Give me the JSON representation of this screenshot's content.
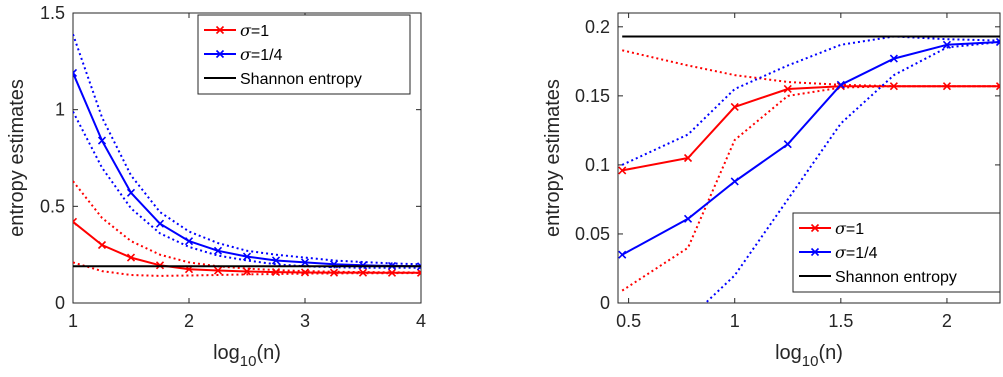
{
  "chart_data": [
    {
      "type": "line",
      "title": "",
      "xlabel": "log",
      "xlabel_sub": "10",
      "xlabel_suffix": "(n)",
      "ylabel": "entropy estimates",
      "xlim": [
        1,
        4
      ],
      "ylim": [
        0,
        1.5
      ],
      "xticks": [
        1,
        2,
        3,
        4
      ],
      "yticks": [
        0,
        0.5,
        1,
        1.5
      ],
      "xtick_labels": [
        "1",
        "2",
        "3",
        "4"
      ],
      "ytick_labels": [
        "0",
        "0.5",
        "1",
        "1.5"
      ],
      "grid": false,
      "legend_position": "top-right",
      "legend_labels": [
        {
          "symbol": "σ",
          "rest": "=1"
        },
        {
          "symbol": "σ",
          "rest": "=1/4"
        },
        {
          "symbol": "",
          "rest": "Shannon entropy"
        }
      ],
      "x": [
        1,
        1.25,
        1.5,
        1.75,
        2,
        2.25,
        2.5,
        2.75,
        3,
        3.25,
        3.5,
        3.75,
        4
      ],
      "series": [
        {
          "name": "σ=1",
          "color": "#ff0000",
          "style": "solid",
          "marker": "x",
          "values": [
            0.42,
            0.3,
            0.235,
            0.195,
            0.175,
            0.168,
            0.163,
            0.16,
            0.158,
            0.157,
            0.157,
            0.156,
            0.156
          ]
        },
        {
          "name": "σ=1 upper",
          "color": "#ff0000",
          "style": "dotted",
          "values": [
            0.63,
            0.44,
            0.32,
            0.25,
            0.21,
            0.19,
            0.178,
            0.17,
            0.165,
            0.162,
            0.16,
            0.159,
            0.158
          ]
        },
        {
          "name": "σ=1 lower",
          "color": "#ff0000",
          "style": "dotted",
          "values": [
            0.21,
            0.165,
            0.145,
            0.14,
            0.142,
            0.145,
            0.148,
            0.15,
            0.152,
            0.153,
            0.154,
            0.154,
            0.155
          ]
        },
        {
          "name": "σ=1/4",
          "color": "#0000ff",
          "style": "solid",
          "marker": "x",
          "values": [
            1.19,
            0.84,
            0.57,
            0.41,
            0.32,
            0.27,
            0.24,
            0.22,
            0.21,
            0.2,
            0.195,
            0.192,
            0.19
          ]
        },
        {
          "name": "σ=1/4 upper",
          "color": "#0000ff",
          "style": "dotted",
          "values": [
            1.39,
            0.96,
            0.66,
            0.47,
            0.37,
            0.31,
            0.27,
            0.25,
            0.235,
            0.22,
            0.212,
            0.205,
            0.2
          ]
        },
        {
          "name": "σ=1/4 lower",
          "color": "#0000ff",
          "style": "dotted",
          "values": [
            0.99,
            0.7,
            0.49,
            0.36,
            0.29,
            0.245,
            0.22,
            0.2,
            0.19,
            0.185,
            0.182,
            0.182,
            0.182
          ]
        },
        {
          "name": "Shannon entropy",
          "color": "#000000",
          "style": "solid",
          "values": [
            0.19,
            0.19,
            0.19,
            0.19,
            0.19,
            0.19,
            0.19,
            0.19,
            0.19,
            0.19,
            0.19,
            0.19,
            0.19
          ]
        }
      ]
    },
    {
      "type": "line",
      "title": "",
      "xlabel": "log",
      "xlabel_sub": "10",
      "xlabel_suffix": "(n)",
      "ylabel": "entropy estimates",
      "xlim": [
        0.45,
        2.25
      ],
      "ylim": [
        0,
        0.21
      ],
      "xticks": [
        0.5,
        1,
        1.5,
        2
      ],
      "yticks": [
        0,
        0.05,
        0.1,
        0.15,
        0.2
      ],
      "xtick_labels": [
        "0.5",
        "1",
        "1.5",
        "2"
      ],
      "ytick_labels": [
        "0",
        "0.05",
        "0.1",
        "0.15",
        "0.2"
      ],
      "grid": false,
      "legend_position": "bottom-right",
      "legend_labels": [
        {
          "symbol": "σ",
          "rest": "=1"
        },
        {
          "symbol": "σ",
          "rest": "=1/4"
        },
        {
          "symbol": "",
          "rest": "Shannon entropy"
        }
      ],
      "x": [
        0.47,
        0.78,
        1,
        1.25,
        1.5,
        1.75,
        2,
        2.25
      ],
      "series": [
        {
          "name": "σ=1",
          "color": "#ff0000",
          "style": "solid",
          "marker": "x",
          "values": [
            0.096,
            0.105,
            0.142,
            0.155,
            0.157,
            0.157,
            0.157,
            0.157
          ]
        },
        {
          "name": "σ=1 upper",
          "color": "#ff0000",
          "style": "dotted",
          "values": [
            0.183,
            0.172,
            0.165,
            0.16,
            0.158,
            0.157,
            0.157,
            0.157
          ]
        },
        {
          "name": "σ=1 lower",
          "color": "#ff0000",
          "style": "dotted",
          "values": [
            0.009,
            0.04,
            0.118,
            0.15,
            0.156,
            0.157,
            0.157,
            0.157
          ]
        },
        {
          "name": "σ=1/4",
          "color": "#0000ff",
          "style": "solid",
          "marker": "x",
          "values": [
            0.035,
            0.061,
            0.088,
            0.115,
            0.158,
            0.177,
            0.187,
            0.189
          ]
        },
        {
          "name": "σ=1/4 upper",
          "color": "#0000ff",
          "style": "dotted",
          "values": [
            0.1,
            0.122,
            0.155,
            0.172,
            0.187,
            0.193,
            0.191,
            0.19
          ]
        },
        {
          "name": "σ=1/4 lower",
          "color": "#0000ff",
          "style": "dotted",
          "values": [
            -0.05,
            -0.012,
            0.02,
            0.075,
            0.13,
            0.165,
            0.185,
            0.189
          ]
        },
        {
          "name": "Shannon entropy",
          "color": "#000000",
          "style": "solid",
          "values": [
            0.193,
            0.193,
            0.193,
            0.193,
            0.193,
            0.193,
            0.193,
            0.193
          ]
        }
      ]
    }
  ]
}
